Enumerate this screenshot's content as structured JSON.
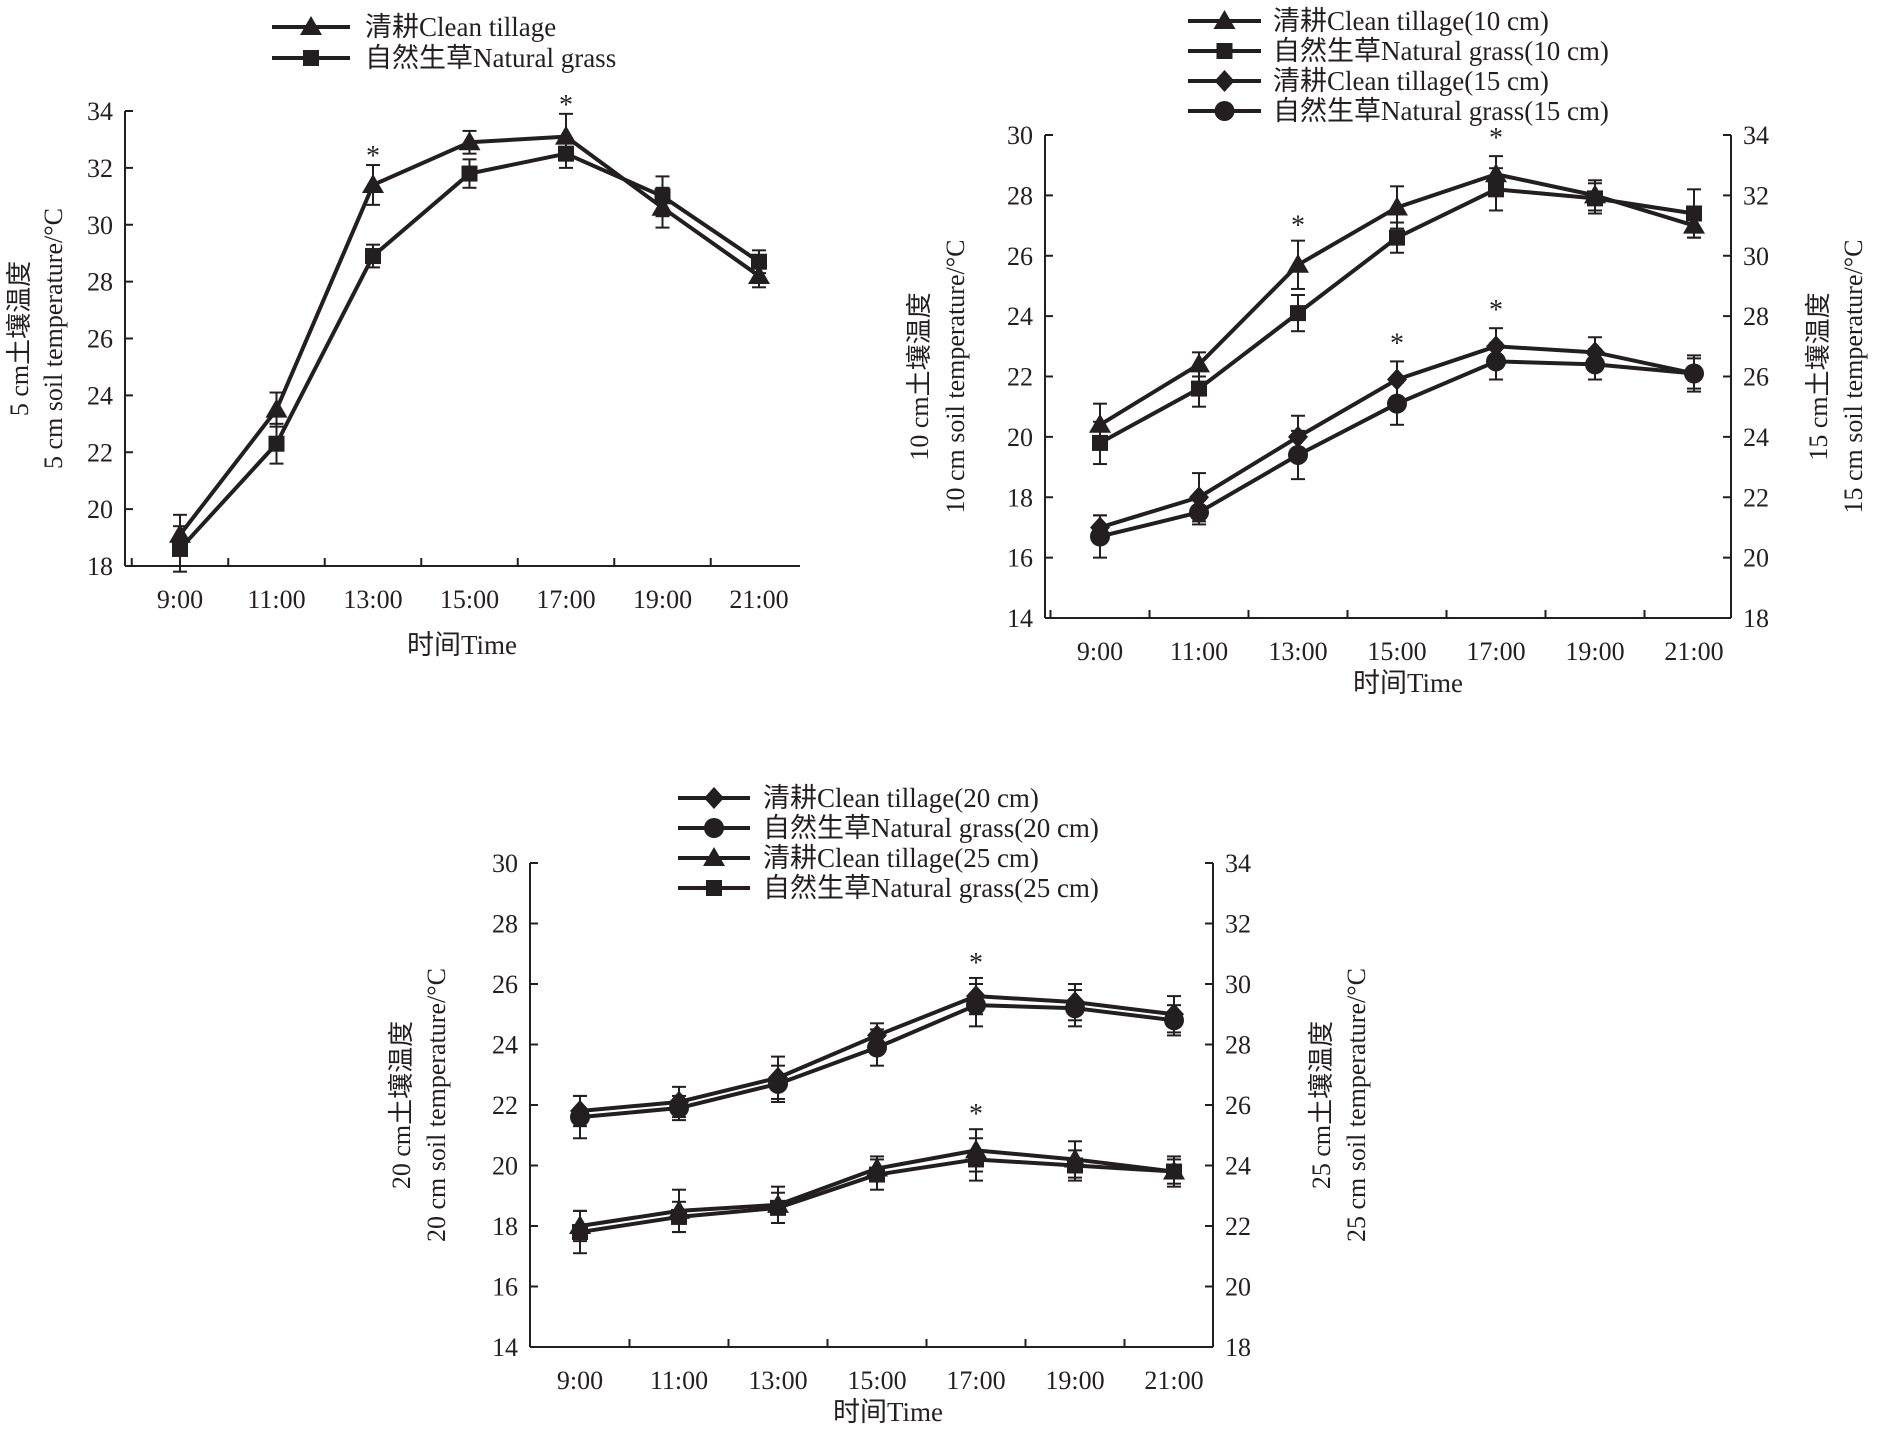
{
  "chart_data": [
    {
      "type": "line",
      "x": [
        "9:00",
        "11:00",
        "13:00",
        "15:00",
        "17:00",
        "19:00",
        "21:00"
      ],
      "xlabel": "时间Time",
      "y_left": {
        "label_lines": [
          "5 cm土壤温度",
          "5 cm soil temperature/°C"
        ],
        "range": [
          18,
          34
        ],
        "ticks": [
          18,
          20,
          22,
          24,
          26,
          28,
          30,
          32,
          34
        ]
      },
      "series": [
        {
          "name": "清耕Clean tillage",
          "marker": "triangle",
          "axis": "left",
          "values": [
            19.1,
            23.5,
            31.4,
            32.9,
            33.1,
            30.6,
            28.2
          ],
          "errors": [
            0.7,
            0.6,
            0.7,
            0.4,
            0.8,
            0.7,
            0.4
          ]
        },
        {
          "name": "自然生草Natural grass",
          "marker": "square",
          "axis": "left",
          "values": [
            18.6,
            22.3,
            28.9,
            31.8,
            32.5,
            31.0,
            28.7
          ],
          "errors": [
            0.8,
            0.7,
            0.4,
            0.5,
            0.5,
            0.7,
            0.4
          ]
        }
      ],
      "significance": [
        {
          "x_index": 2,
          "value": 32.1,
          "axis": "left",
          "label": "*"
        },
        {
          "x_index": 4,
          "value": 33.9,
          "axis": "left",
          "label": "*"
        }
      ],
      "legend_position": "top"
    },
    {
      "type": "line",
      "x": [
        "9:00",
        "11:00",
        "13:00",
        "15:00",
        "17:00",
        "19:00",
        "21:00"
      ],
      "xlabel": "时间Time",
      "y_left": {
        "label_lines": [
          "10 cm土壤温度",
          "10 cm soil temperature/°C"
        ],
        "range": [
          14,
          30
        ],
        "ticks": [
          14,
          16,
          18,
          20,
          22,
          24,
          26,
          28,
          30
        ]
      },
      "y_right": {
        "label_lines": [
          "15 cm土壤温度",
          "15 cm soil temperature/°C"
        ],
        "range": [
          18,
          34
        ],
        "ticks": [
          18,
          20,
          22,
          24,
          26,
          28,
          30,
          32,
          34
        ]
      },
      "series": [
        {
          "name": "清耕Clean tillage(10 cm)",
          "marker": "triangle",
          "axis": "left",
          "values": [
            20.4,
            22.4,
            25.7,
            27.6,
            28.7,
            28.0,
            27.0
          ],
          "errors": [
            0.7,
            0.4,
            0.8,
            0.7,
            0.6,
            0.5,
            0.4
          ]
        },
        {
          "name": "自然生草Natural grass(10 cm)",
          "marker": "square",
          "axis": "left",
          "values": [
            19.8,
            21.6,
            24.1,
            26.6,
            28.2,
            27.9,
            27.4
          ],
          "errors": [
            0.7,
            0.6,
            0.6,
            0.5,
            0.7,
            0.5,
            0.8
          ]
        },
        {
          "name": "清耕Clean tillage(15 cm)",
          "marker": "diamond",
          "axis": "right",
          "values": [
            21.0,
            22.0,
            24.0,
            25.9,
            27.0,
            26.8,
            26.1
          ],
          "errors": [
            0.4,
            0.8,
            0.7,
            0.6,
            0.6,
            0.5,
            0.5
          ]
        },
        {
          "name": "自然生草Natural grass(15 cm)",
          "marker": "circle",
          "axis": "right",
          "values": [
            20.7,
            21.5,
            23.4,
            25.1,
            26.5,
            26.4,
            26.1
          ],
          "errors": [
            0.7,
            0.4,
            0.8,
            0.7,
            0.6,
            0.5,
            0.6
          ]
        }
      ],
      "significance": [
        {
          "x_index": 2,
          "value": 26.7,
          "axis": "left",
          "label": "*"
        },
        {
          "x_index": 4,
          "value": 29.6,
          "axis": "left",
          "label": "*"
        },
        {
          "x_index": 3,
          "value": 26.8,
          "axis": "right",
          "label": "*"
        },
        {
          "x_index": 4,
          "value": 27.9,
          "axis": "right",
          "label": "*"
        }
      ],
      "legend_position": "top"
    },
    {
      "type": "line",
      "x": [
        "9:00",
        "11:00",
        "13:00",
        "15:00",
        "17:00",
        "19:00",
        "21:00"
      ],
      "xlabel": "时间Time",
      "y_left": {
        "label_lines": [
          "20 cm土壤温度",
          "20 cm soil temperature/°C"
        ],
        "range": [
          14,
          30
        ],
        "ticks": [
          14,
          16,
          18,
          20,
          22,
          24,
          26,
          28,
          30
        ]
      },
      "y_right": {
        "label_lines": [
          "25 cm土壤温度",
          "25 cm soil temperature/°C"
        ],
        "range": [
          18,
          34
        ],
        "ticks": [
          18,
          20,
          22,
          24,
          26,
          28,
          30,
          32,
          34
        ]
      },
      "series": [
        {
          "name": "清耕Clean tillage(20 cm)",
          "marker": "diamond",
          "axis": "left",
          "values": [
            21.8,
            22.1,
            22.9,
            24.3,
            25.6,
            25.4,
            25.0
          ],
          "errors": [
            0.5,
            0.5,
            0.7,
            0.4,
            0.6,
            0.6,
            0.6
          ]
        },
        {
          "name": "自然生草Natural grass(20 cm)",
          "marker": "circle",
          "axis": "left",
          "values": [
            21.6,
            21.9,
            22.7,
            23.9,
            25.3,
            25.2,
            24.8
          ],
          "errors": [
            0.7,
            0.4,
            0.6,
            0.6,
            0.7,
            0.6,
            0.5
          ]
        },
        {
          "name": "清耕Clean tillage(25 cm)",
          "marker": "triangle",
          "axis": "right",
          "values": [
            22.0,
            22.5,
            22.7,
            23.9,
            24.5,
            24.2,
            23.8
          ],
          "errors": [
            0.5,
            0.7,
            0.6,
            0.4,
            0.7,
            0.6,
            0.5
          ]
        },
        {
          "name": "自然生草Natural grass(25 cm)",
          "marker": "square",
          "axis": "right",
          "values": [
            21.8,
            22.3,
            22.6,
            23.7,
            24.2,
            24.0,
            23.8
          ],
          "errors": [
            0.7,
            0.5,
            0.5,
            0.5,
            0.7,
            0.5,
            0.4
          ]
        }
      ],
      "significance": [
        {
          "x_index": 4,
          "value": 26.4,
          "axis": "left",
          "label": "*"
        },
        {
          "x_index": 4,
          "value": 25.4,
          "axis": "right",
          "label": "*"
        }
      ],
      "legend_position": "top"
    }
  ]
}
